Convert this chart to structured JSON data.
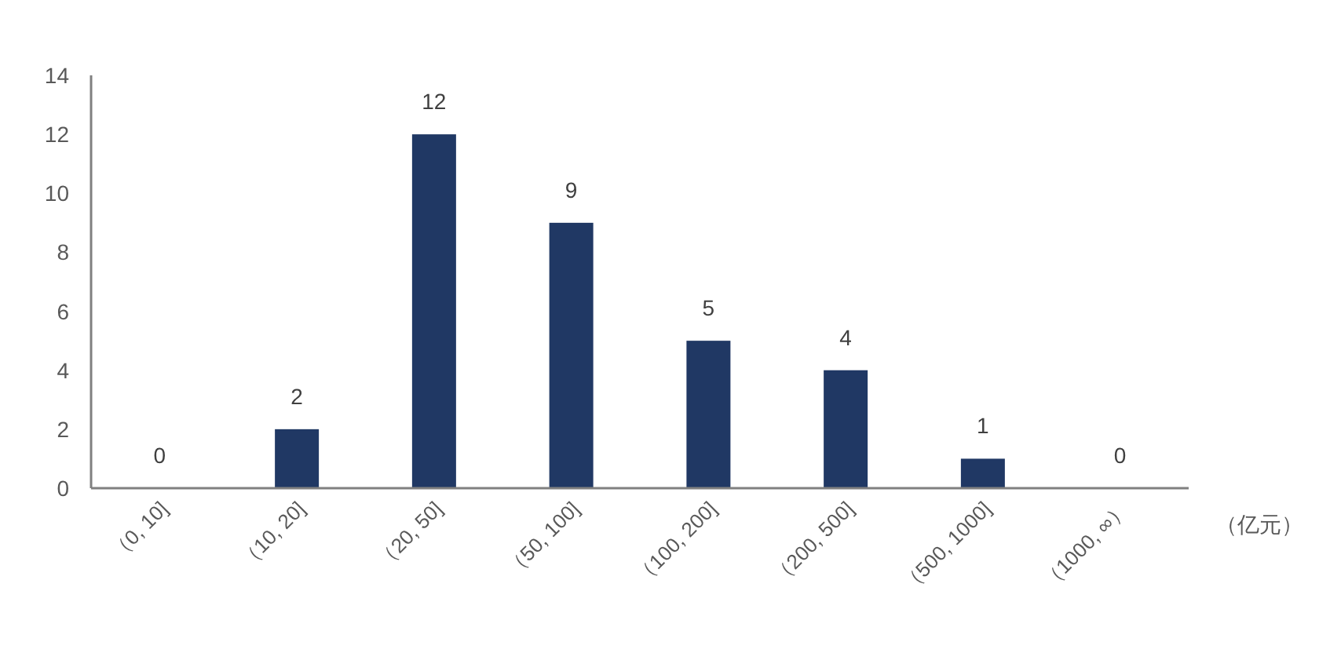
{
  "chart_data": {
    "type": "bar",
    "xlabel": "（亿元）",
    "categories": [
      "（0, 10]",
      "（10, 20]",
      "（20, 50]",
      "（50, 100]",
      "（100, 200]",
      "（200, 500]",
      "（500, 1000]",
      "（1000, ∞）"
    ],
    "values": [
      0,
      2,
      12,
      9,
      5,
      4,
      1,
      0
    ],
    "color": "#203864",
    "ylim": [
      0,
      14
    ],
    "yticks": [
      0,
      2,
      4,
      6,
      8,
      10,
      12,
      14
    ],
    "grid": false,
    "data_labels": true
  }
}
